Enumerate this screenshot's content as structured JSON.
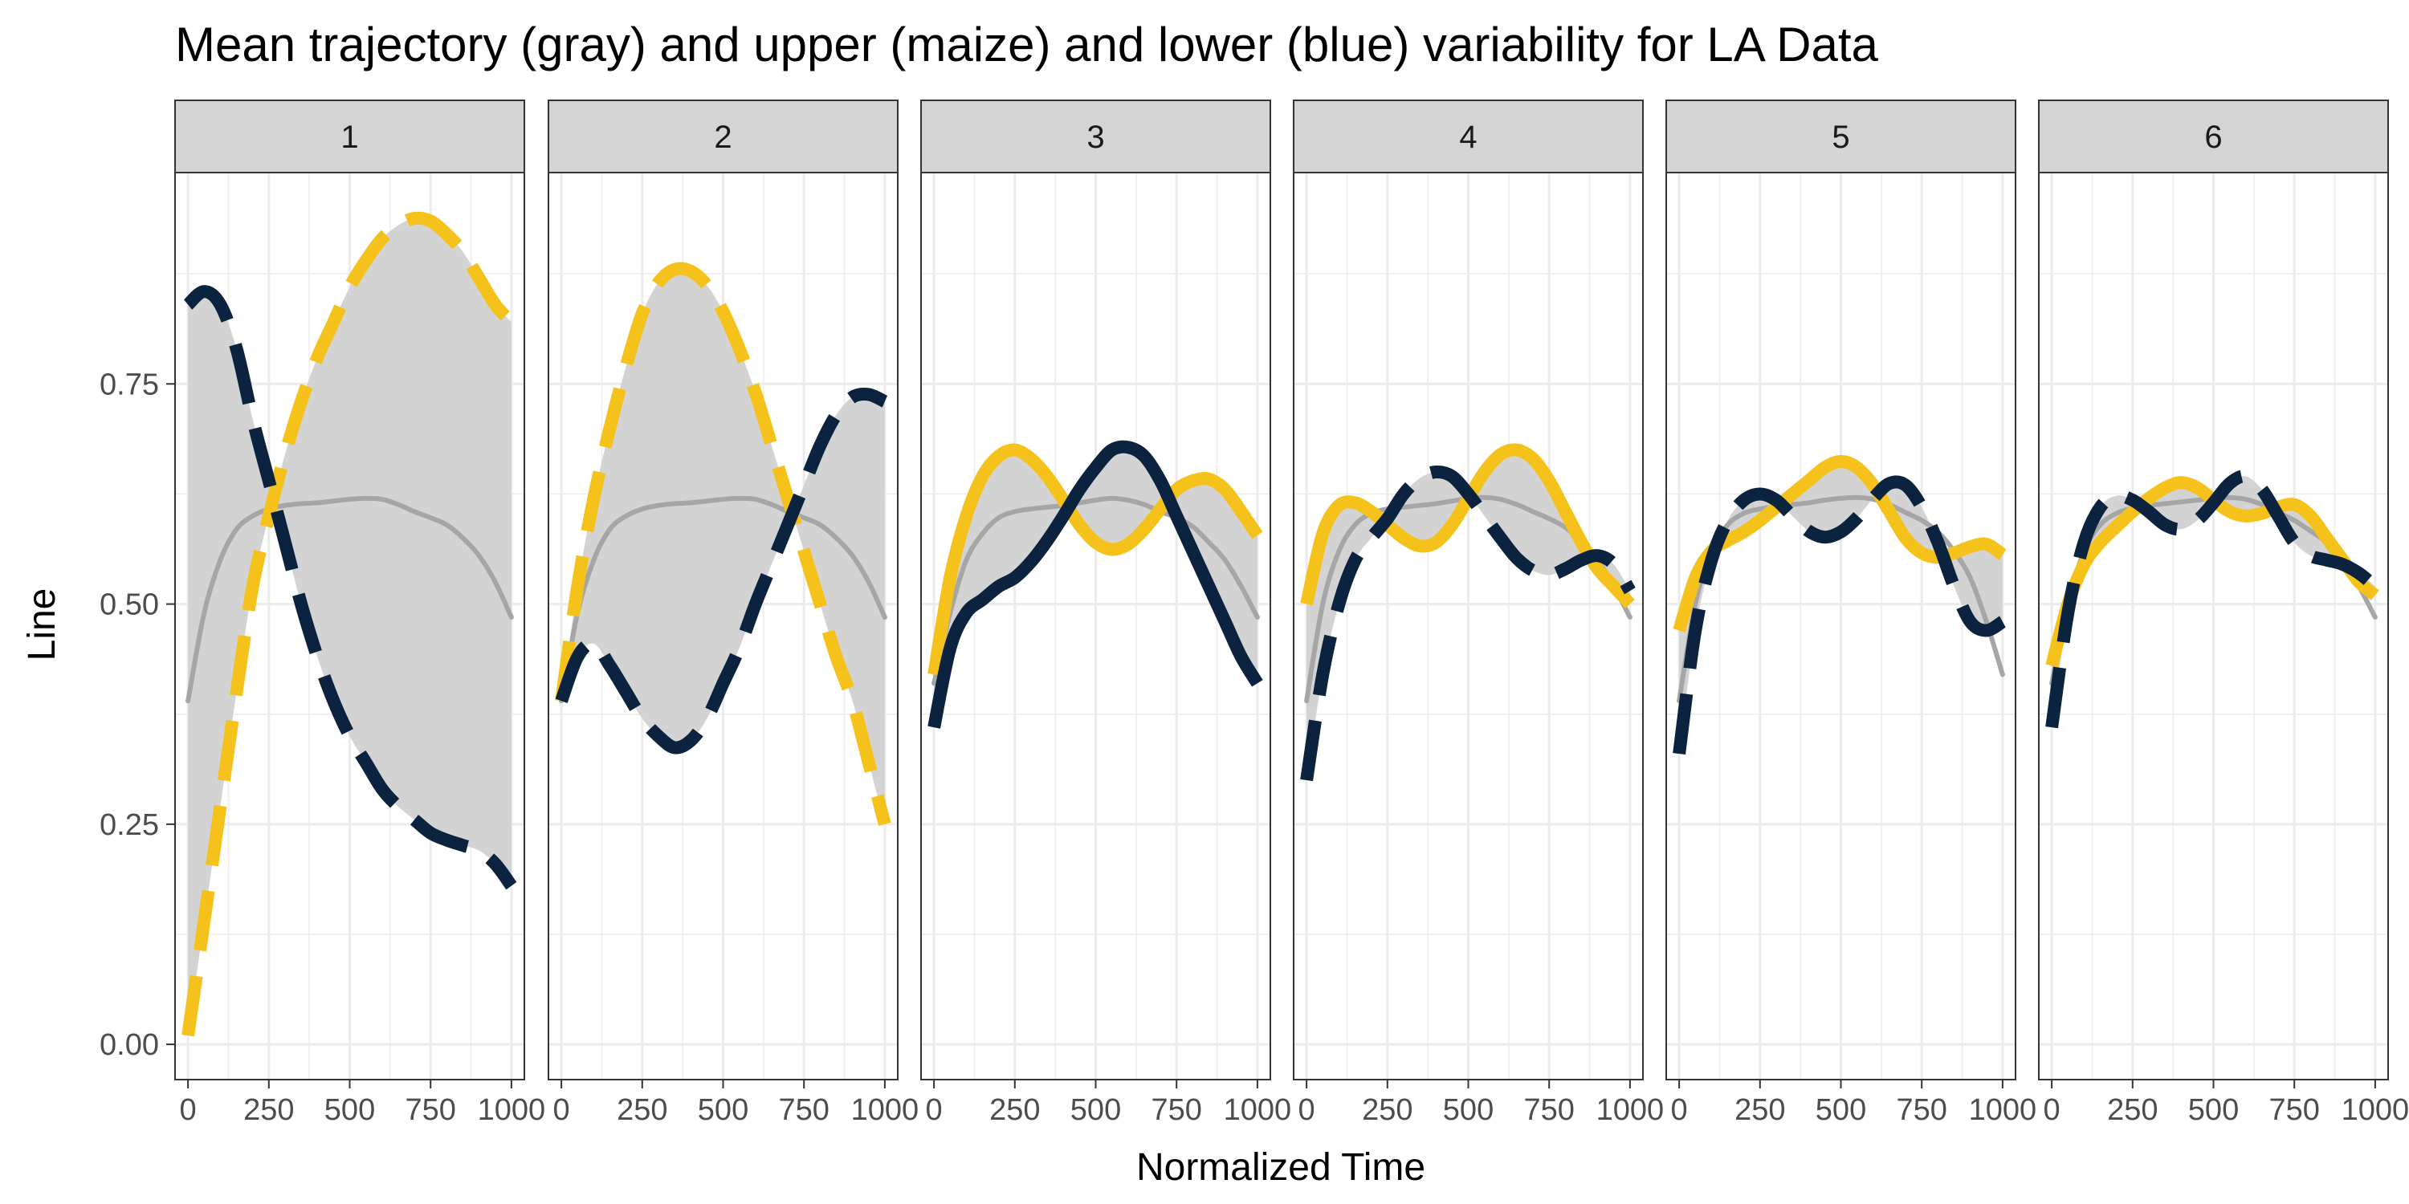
{
  "chart_data": {
    "type": "line",
    "title": "Mean trajectory (gray) and upper (maize) and lower (blue) variability for LA Data",
    "xlabel": "Normalized Time",
    "ylabel": "Line",
    "xlim": [
      -40,
      1040
    ],
    "ylim": [
      -0.04,
      0.99
    ],
    "x_ticks": [
      0,
      250,
      500,
      750,
      1000
    ],
    "x_tick_labels": [
      "0",
      "250",
      "500",
      "750",
      "1000"
    ],
    "y_ticks": [
      0.0,
      0.25,
      0.5,
      0.75
    ],
    "y_tick_labels": [
      "0.00",
      "0.25",
      "0.50",
      "0.75"
    ],
    "grid": true,
    "colors": {
      "mean": "#a6a6a6",
      "upper": "#f5c21b",
      "lower": "#0c2340",
      "ribbon": "#d3d3d3",
      "strip_fill": "#d4d4d4",
      "grid": "#ebebeb"
    },
    "x": [
      0,
      50,
      100,
      150,
      200,
      250,
      300,
      350,
      400,
      450,
      500,
      550,
      600,
      650,
      700,
      750,
      800,
      850,
      900,
      950,
      1000
    ],
    "panels": [
      {
        "label": "1",
        "series": [
          {
            "role": "mean",
            "style": "solid",
            "values": [
              0.39,
              0.49,
              0.55,
              0.585,
              0.6,
              0.608,
              0.612,
              0.614,
              0.615,
              0.617,
              0.619,
              0.62,
              0.619,
              0.613,
              0.605,
              0.598,
              0.59,
              0.575,
              0.555,
              0.525,
              0.485
            ]
          },
          {
            "role": "upper",
            "style": "dashed",
            "values": [
              0.01,
              0.14,
              0.27,
              0.4,
              0.52,
              0.6,
              0.67,
              0.73,
              0.78,
              0.82,
              0.86,
              0.89,
              0.915,
              0.93,
              0.938,
              0.935,
              0.92,
              0.9,
              0.87,
              0.84,
              0.82
            ]
          },
          {
            "role": "lower",
            "style": "dashed",
            "values": [
              0.84,
              0.855,
              0.84,
              0.79,
              0.71,
              0.64,
              0.57,
              0.5,
              0.44,
              0.39,
              0.35,
              0.32,
              0.29,
              0.27,
              0.255,
              0.24,
              0.232,
              0.226,
              0.22,
              0.205,
              0.18
            ]
          }
        ]
      },
      {
        "label": "2",
        "series": [
          {
            "role": "mean",
            "style": "solid",
            "values": [
              0.39,
              0.49,
              0.55,
              0.585,
              0.6,
              0.608,
              0.612,
              0.614,
              0.615,
              0.617,
              0.619,
              0.62,
              0.619,
              0.613,
              0.605,
              0.598,
              0.59,
              0.575,
              0.555,
              0.525,
              0.485
            ]
          },
          {
            "role": "upper",
            "style": "dashed",
            "values": [
              0.39,
              0.52,
              0.62,
              0.7,
              0.77,
              0.83,
              0.865,
              0.88,
              0.878,
              0.862,
              0.832,
              0.79,
              0.74,
              0.68,
              0.62,
              0.56,
              0.5,
              0.44,
              0.39,
              0.32,
              0.25
            ]
          },
          {
            "role": "lower",
            "style": "dashed",
            "values": [
              0.39,
              0.44,
              0.455,
              0.43,
              0.4,
              0.37,
              0.35,
              0.337,
              0.345,
              0.37,
              0.41,
              0.45,
              0.5,
              0.545,
              0.59,
              0.635,
              0.68,
              0.715,
              0.735,
              0.738,
              0.73
            ]
          }
        ]
      },
      {
        "label": "3",
        "series": [
          {
            "role": "mean",
            "style": "solid",
            "values": [
              0.41,
              0.49,
              0.55,
              0.58,
              0.598,
              0.605,
              0.608,
              0.61,
              0.612,
              0.615,
              0.618,
              0.62,
              0.618,
              0.613,
              0.605,
              0.598,
              0.588,
              0.57,
              0.55,
              0.52,
              0.485
            ]
          },
          {
            "role": "upper",
            "style": "solid-then-dashed",
            "values": [
              0.42,
              0.53,
              0.6,
              0.645,
              0.668,
              0.675,
              0.665,
              0.645,
              0.618,
              0.59,
              0.57,
              0.562,
              0.568,
              0.585,
              0.608,
              0.63,
              0.64,
              0.642,
              0.63,
              0.605,
              0.578
            ]
          },
          {
            "role": "lower",
            "style": "solid-then-dashed",
            "values": [
              0.36,
              0.45,
              0.49,
              0.505,
              0.52,
              0.53,
              0.548,
              0.572,
              0.6,
              0.63,
              0.655,
              0.675,
              0.678,
              0.668,
              0.64,
              0.6,
              0.56,
              0.52,
              0.48,
              0.44,
              0.41
            ]
          }
        ]
      },
      {
        "label": "4",
        "series": [
          {
            "role": "mean",
            "style": "solid",
            "values": [
              0.39,
              0.5,
              0.56,
              0.59,
              0.603,
              0.608,
              0.61,
              0.612,
              0.614,
              0.617,
              0.62,
              0.621,
              0.619,
              0.613,
              0.605,
              0.597,
              0.587,
              0.57,
              0.55,
              0.52,
              0.485
            ]
          },
          {
            "role": "upper",
            "style": "solid",
            "values": [
              0.5,
              0.58,
              0.612,
              0.615,
              0.605,
              0.59,
              0.575,
              0.566,
              0.57,
              0.59,
              0.62,
              0.65,
              0.67,
              0.675,
              0.665,
              0.64,
              0.605,
              0.57,
              0.54,
              0.52,
              0.5
            ]
          },
          {
            "role": "lower",
            "style": "dashed",
            "values": [
              0.3,
              0.42,
              0.5,
              0.55,
              0.575,
              0.597,
              0.625,
              0.643,
              0.65,
              0.645,
              0.625,
              0.6,
              0.575,
              0.552,
              0.538,
              0.533,
              0.54,
              0.55,
              0.555,
              0.545,
              0.515
            ]
          }
        ]
      },
      {
        "label": "5",
        "series": [
          {
            "role": "mean",
            "style": "solid",
            "values": [
              0.39,
              0.5,
              0.56,
              0.59,
              0.603,
              0.608,
              0.611,
              0.613,
              0.615,
              0.618,
              0.62,
              0.621,
              0.619,
              0.613,
              0.604,
              0.595,
              0.582,
              0.56,
              0.53,
              0.48,
              0.42
            ]
          },
          {
            "role": "upper",
            "style": "solid",
            "values": [
              0.47,
              0.53,
              0.56,
              0.572,
              0.582,
              0.595,
              0.61,
              0.625,
              0.64,
              0.655,
              0.662,
              0.655,
              0.635,
              0.605,
              0.575,
              0.558,
              0.553,
              0.558,
              0.565,
              0.568,
              0.556
            ]
          },
          {
            "role": "lower",
            "style": "dashed",
            "values": [
              0.33,
              0.47,
              0.55,
              0.595,
              0.618,
              0.625,
              0.618,
              0.6,
              0.583,
              0.576,
              0.582,
              0.598,
              0.62,
              0.637,
              0.635,
              0.61,
              0.57,
              0.52,
              0.48,
              0.47,
              0.48
            ]
          }
        ]
      },
      {
        "label": "6",
        "series": [
          {
            "role": "mean",
            "style": "solid",
            "values": [
              0.41,
              0.5,
              0.56,
              0.59,
              0.603,
              0.609,
              0.612,
              0.614,
              0.616,
              0.618,
              0.62,
              0.621,
              0.619,
              0.613,
              0.604,
              0.595,
              0.583,
              0.57,
              0.55,
              0.52,
              0.485
            ]
          },
          {
            "role": "upper",
            "style": "solid",
            "values": [
              0.43,
              0.5,
              0.545,
              0.57,
              0.588,
              0.605,
              0.62,
              0.632,
              0.638,
              0.632,
              0.618,
              0.605,
              0.6,
              0.603,
              0.61,
              0.613,
              0.6,
              0.575,
              0.55,
              0.525,
              0.51
            ]
          },
          {
            "role": "lower",
            "style": "dashed",
            "values": [
              0.36,
              0.49,
              0.57,
              0.61,
              0.623,
              0.618,
              0.605,
              0.59,
              0.585,
              0.595,
              0.615,
              0.637,
              0.645,
              0.63,
              0.6,
              0.57,
              0.555,
              0.55,
              0.545,
              0.535,
              0.52
            ]
          }
        ]
      }
    ]
  }
}
